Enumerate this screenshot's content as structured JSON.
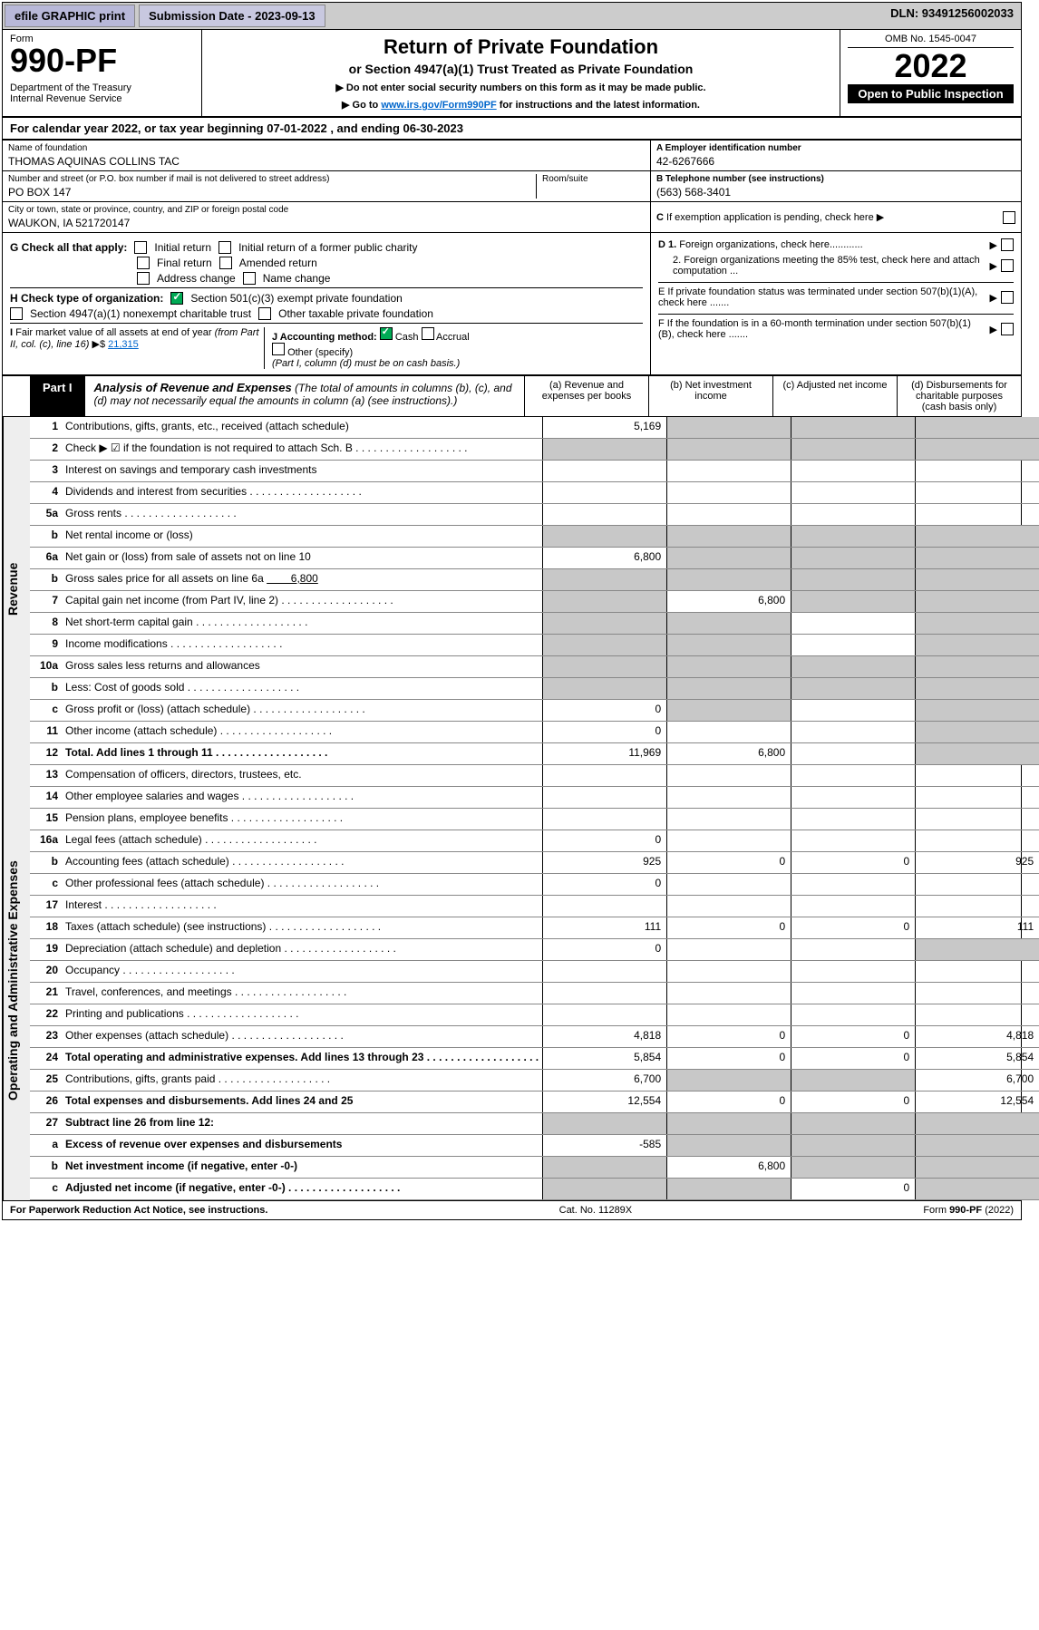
{
  "topbar": {
    "efile": "efile GRAPHIC print",
    "subdate_label": "Submission Date - 2023-09-13",
    "dln": "DLN: 93491256002033"
  },
  "header": {
    "form_label": "Form",
    "form_number": "990-PF",
    "dept": "Department of the Treasury\nInternal Revenue Service",
    "main_title": "Return of Private Foundation",
    "subtitle": "or Section 4947(a)(1) Trust Treated as Private Foundation",
    "instr1": "▶ Do not enter social security numbers on this form as it may be made public.",
    "instr2": "▶ Go to www.irs.gov/Form990PF for instructions and the latest information.",
    "omb": "OMB No. 1545-0047",
    "year": "2022",
    "open": "Open to Public Inspection"
  },
  "cal_year": "For calendar year 2022, or tax year beginning 07-01-2022             , and ending 06-30-2023",
  "entity": {
    "name_label": "Name of foundation",
    "name": "THOMAS AQUINAS COLLINS TAC",
    "ein_label": "A Employer identification number",
    "ein": "42-6267666",
    "addr_label": "Number and street (or P.O. box number if mail is not delivered to street address)",
    "addr": "PO BOX 147",
    "room_label": "Room/suite",
    "phone_label": "B Telephone number (see instructions)",
    "phone": "(563) 568-3401",
    "city_label": "City or town, state or province, country, and ZIP or foreign postal code",
    "city": "WAUKON, IA  521720147",
    "c_label": "C If exemption application is pending, check here"
  },
  "checks": {
    "g_label": "G Check all that apply:",
    "initial": "Initial return",
    "initial_former": "Initial return of a former public charity",
    "final": "Final return",
    "amended": "Amended return",
    "addr_chg": "Address change",
    "name_chg": "Name change",
    "h_label": "H Check type of organization:",
    "sec501": "Section 501(c)(3) exempt private foundation",
    "sec4947": "Section 4947(a)(1) nonexempt charitable trust",
    "other_tax": "Other taxable private foundation",
    "i_label": "I Fair market value of all assets at end of year (from Part II, col. (c), line 16)",
    "i_val": "21,315",
    "j_label": "J Accounting method:",
    "cash": "Cash",
    "accrual": "Accrual",
    "other_spec": "Other (specify)",
    "j_note": "(Part I, column (d) must be on cash basis.)",
    "d1": "D 1. Foreign organizations, check here............",
    "d2": "2. Foreign organizations meeting the 85% test, check here and attach computation ...",
    "e": "E  If private foundation status was terminated under section 507(b)(1)(A), check here .......",
    "f": "F  If the foundation is in a 60-month termination under section 507(b)(1)(B), check here .......  "
  },
  "part1": {
    "tab": "Part I",
    "title": "Analysis of Revenue and Expenses",
    "title_note": "(The total of amounts in columns (b), (c), and (d) may not necessarily equal the amounts in column (a) (see instructions).)",
    "col_a": "(a) Revenue and expenses per books",
    "col_b": "(b) Net investment income",
    "col_c": "(c) Adjusted net income",
    "col_d": "(d) Disbursements for charitable purposes (cash basis only)"
  },
  "side_revenue": "Revenue",
  "side_expenses": "Operating and Administrative Expenses",
  "rows": {
    "r1": {
      "n": "1",
      "d": "Contributions, gifts, grants, etc., received (attach schedule)",
      "a": "5,169",
      "shaded_bcd": true
    },
    "r2": {
      "n": "2",
      "d": "Check ▶ ☑ if the foundation is not required to attach Sch. B",
      "dots": true,
      "shaded_all": true
    },
    "r3": {
      "n": "3",
      "d": "Interest on savings and temporary cash investments"
    },
    "r4": {
      "n": "4",
      "d": "Dividends and interest from securities",
      "dots": true
    },
    "r5a": {
      "n": "5a",
      "d": "Gross rents",
      "dots": true
    },
    "r5b": {
      "n": "b",
      "d": "Net rental income or (loss)",
      "shaded_all": true
    },
    "r6a": {
      "n": "6a",
      "d": "Net gain or (loss) from sale of assets not on line 10",
      "a": "6,800",
      "shaded_bcd": true
    },
    "r6b": {
      "n": "b",
      "d": "Gross sales price for all assets on line 6a",
      "inline": "6,800",
      "shaded_all": true
    },
    "r7": {
      "n": "7",
      "d": "Capital gain net income (from Part IV, line 2)",
      "dots": true,
      "b": "6,800",
      "shaded_a": true,
      "shaded_cd": true
    },
    "r8": {
      "n": "8",
      "d": "Net short-term capital gain",
      "dots": true,
      "shaded_ab": true,
      "shaded_d": true
    },
    "r9": {
      "n": "9",
      "d": "Income modifications",
      "dots": true,
      "shaded_ab": true,
      "shaded_d": true
    },
    "r10a": {
      "n": "10a",
      "d": "Gross sales less returns and allowances",
      "shaded_all": true
    },
    "r10b": {
      "n": "b",
      "d": "Less: Cost of goods sold",
      "dots": true,
      "shaded_all": true
    },
    "r10c": {
      "n": "c",
      "d": "Gross profit or (loss) (attach schedule)",
      "dots": true,
      "a": "0",
      "shaded_bd": true
    },
    "r11": {
      "n": "11",
      "d": "Other income (attach schedule)",
      "dots": true,
      "a": "0",
      "shaded_d": true
    },
    "r12": {
      "n": "12",
      "d": "Total. Add lines 1 through 11",
      "dots": true,
      "a": "11,969",
      "b": "6,800",
      "shaded_d": true,
      "bold": true
    },
    "r13": {
      "n": "13",
      "d": "Compensation of officers, directors, trustees, etc."
    },
    "r14": {
      "n": "14",
      "d": "Other employee salaries and wages",
      "dots": true
    },
    "r15": {
      "n": "15",
      "d": "Pension plans, employee benefits",
      "dots": true
    },
    "r16a": {
      "n": "16a",
      "d": "Legal fees (attach schedule)",
      "dots": true,
      "a": "0"
    },
    "r16b": {
      "n": "b",
      "d": "Accounting fees (attach schedule)",
      "dots": true,
      "a": "925",
      "b": "0",
      "c": "0",
      "dv": "925"
    },
    "r16c": {
      "n": "c",
      "d": "Other professional fees (attach schedule)",
      "dots": true,
      "a": "0"
    },
    "r17": {
      "n": "17",
      "d": "Interest",
      "dots": true
    },
    "r18": {
      "n": "18",
      "d": "Taxes (attach schedule) (see instructions)",
      "dots": true,
      "a": "111",
      "b": "0",
      "c": "0",
      "dv": "111"
    },
    "r19": {
      "n": "19",
      "d": "Depreciation (attach schedule) and depletion",
      "dots": true,
      "a": "0",
      "shaded_d": true
    },
    "r20": {
      "n": "20",
      "d": "Occupancy",
      "dots": true
    },
    "r21": {
      "n": "21",
      "d": "Travel, conferences, and meetings",
      "dots": true
    },
    "r22": {
      "n": "22",
      "d": "Printing and publications",
      "dots": true
    },
    "r23": {
      "n": "23",
      "d": "Other expenses (attach schedule)",
      "dots": true,
      "a": "4,818",
      "b": "0",
      "c": "0",
      "dv": "4,818"
    },
    "r24": {
      "n": "24",
      "d": "Total operating and administrative expenses. Add lines 13 through 23",
      "dots": true,
      "a": "5,854",
      "b": "0",
      "c": "0",
      "dv": "5,854",
      "bold": true
    },
    "r25": {
      "n": "25",
      "d": "Contributions, gifts, grants paid",
      "dots": true,
      "a": "6,700",
      "shaded_bc": true,
      "dv": "6,700"
    },
    "r26": {
      "n": "26",
      "d": "Total expenses and disbursements. Add lines 24 and 25",
      "a": "12,554",
      "b": "0",
      "c": "0",
      "dv": "12,554",
      "bold": true
    },
    "r27": {
      "n": "27",
      "d": "Subtract line 26 from line 12:",
      "shaded_all": true,
      "bold": true
    },
    "r27a": {
      "n": "a",
      "d": "Excess of revenue over expenses and disbursements",
      "a": "-585",
      "shaded_bcd": true,
      "bold": true
    },
    "r27b": {
      "n": "b",
      "d": "Net investment income (if negative, enter -0-)",
      "b": "6,800",
      "shaded_a": true,
      "shaded_cd": true,
      "bold": true
    },
    "r27c": {
      "n": "c",
      "d": "Adjusted net income (if negative, enter -0-)",
      "dots": true,
      "c": "0",
      "shaded_ab": true,
      "shaded_d": true,
      "bold": true
    }
  },
  "footer": {
    "left": "For Paperwork Reduction Act Notice, see instructions.",
    "mid": "Cat. No. 11289X",
    "right": "Form 990-PF (2022)"
  }
}
